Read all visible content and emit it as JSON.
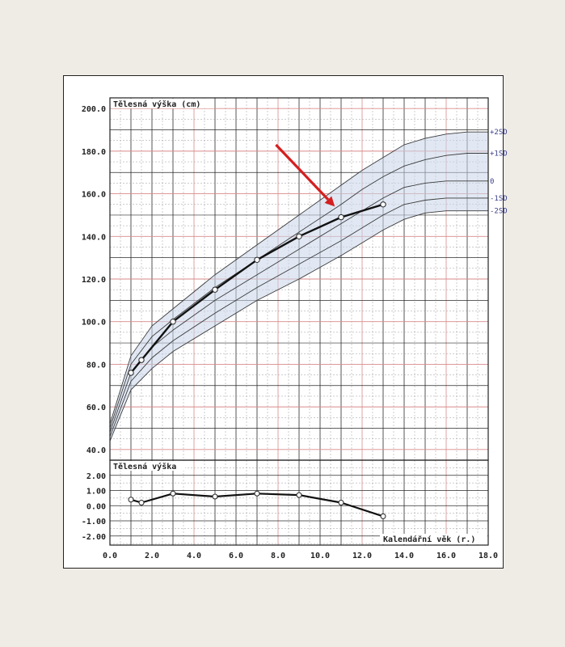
{
  "chart_data": [
    {
      "type": "line",
      "title": "Tělesná výška (cm)",
      "xlabel": "",
      "ylabel": "",
      "xlim": [
        0,
        18
      ],
      "ylim": [
        35,
        205
      ],
      "grid": true,
      "yticks": [
        40,
        60,
        80,
        100,
        120,
        140,
        160,
        180,
        200
      ],
      "ytick_labels": [
        "40.0",
        "60.0",
        "80.0",
        "100.0",
        "120.0",
        "140.0",
        "160.0",
        "180.0",
        "200.0"
      ],
      "series": [
        {
          "name": "",
          "x": [
            1,
            1.5,
            3,
            5,
            7,
            9,
            11,
            13
          ],
          "y": [
            76,
            82,
            100,
            115,
            129,
            140,
            149,
            155
          ]
        }
      ],
      "reference_bands": [
        {
          "label": "+2SD",
          "x": [
            0,
            1,
            2,
            3,
            5,
            7,
            9,
            11,
            12,
            13,
            14,
            15,
            16,
            17,
            18
          ],
          "y": [
            52,
            84,
            98,
            106,
            122,
            136,
            150,
            164,
            171,
            177,
            183,
            186,
            188,
            189,
            189
          ]
        },
        {
          "label": "+1SD",
          "x": [
            0,
            1,
            2,
            3,
            5,
            7,
            9,
            11,
            12,
            13,
            14,
            15,
            16,
            17,
            18
          ],
          "y": [
            50,
            80,
            93,
            101,
            116,
            129,
            142,
            155,
            162,
            168,
            173,
            176,
            178,
            179,
            179
          ]
        },
        {
          "label": "0",
          "x": [
            0,
            1,
            2,
            3,
            5,
            7,
            9,
            11,
            12,
            13,
            14,
            15,
            16,
            17,
            18
          ],
          "y": [
            48,
            76,
            88,
            96,
            110,
            122,
            134,
            146,
            152,
            158,
            163,
            165,
            166,
            166,
            166
          ]
        },
        {
          "label": "-1SD",
          "x": [
            0,
            1,
            2,
            3,
            5,
            7,
            9,
            11,
            12,
            13,
            14,
            15,
            16,
            17,
            18
          ],
          "y": [
            46,
            72,
            83,
            91,
            104,
            116,
            127,
            138,
            144,
            150,
            155,
            157,
            158,
            158,
            158
          ]
        },
        {
          "label": "-2SD",
          "x": [
            0,
            1,
            2,
            3,
            5,
            7,
            9,
            11,
            12,
            13,
            14,
            15,
            16,
            17,
            18
          ],
          "y": [
            44,
            68,
            78,
            86,
            98,
            110,
            120,
            131,
            137,
            143,
            148,
            151,
            152,
            152,
            152
          ]
        }
      ],
      "annotations": [
        {
          "type": "arrow",
          "color": "#d42020",
          "from": [
            7.9,
            183
          ],
          "to": [
            10.7,
            154
          ]
        }
      ]
    },
    {
      "type": "line",
      "title": "Tělesná výška",
      "xlabel": "Kalendářní věk (r.)",
      "ylabel": "",
      "xlim": [
        0,
        18
      ],
      "ylim": [
        -2.6,
        3.0
      ],
      "grid": true,
      "xticks": [
        0,
        2,
        4,
        6,
        8,
        10,
        12,
        14,
        16,
        18
      ],
      "xtick_labels": [
        "0.0",
        "2.0",
        "4.0",
        "6.0",
        "8.0",
        "10.0",
        "12.0",
        "14.0",
        "16.0",
        "18.0"
      ],
      "yticks": [
        2,
        1,
        0,
        -1,
        -2
      ],
      "ytick_labels": [
        "2.00",
        "1.00",
        "0.00",
        "-1.00",
        "-2.00"
      ],
      "series": [
        {
          "name": "",
          "x": [
            1,
            1.5,
            3,
            5,
            7,
            9,
            11,
            13
          ],
          "y": [
            0.4,
            0.2,
            0.8,
            0.6,
            0.8,
            0.7,
            0.2,
            -0.7
          ]
        }
      ]
    }
  ],
  "colors": {
    "major_grid": "#2b2b2b",
    "minor_grid": "#9a9a9a",
    "red_grid": "#d98a8a",
    "band_fill": "#c9d6ea",
    "band_line": "#3b3b3b",
    "sd_label": "#3a3f8a",
    "patient_line": "#111111",
    "arrow": "#d42020"
  }
}
